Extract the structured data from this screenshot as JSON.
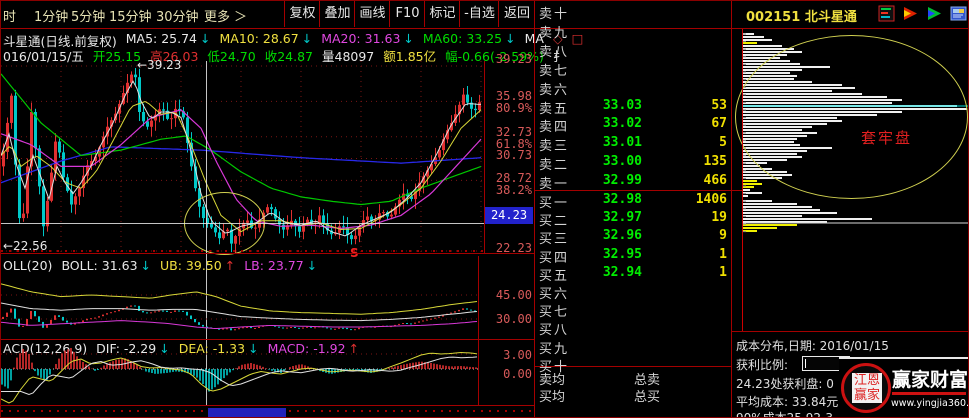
{
  "toolbar": {
    "periods": [
      "时",
      "1分钟",
      "5分钟",
      "15分钟",
      "30分钟",
      "更多",
      "＞"
    ],
    "buttons": [
      "复权",
      "叠加",
      "画线",
      "F10",
      "标记",
      "-自选",
      "返回"
    ]
  },
  "window": {
    "stock_code": "002151",
    "stock_name": "北斗星通"
  },
  "icons": [
    "quote-list-icon",
    "red-arrow-icon",
    "green-arrow-icon",
    "window-icon"
  ],
  "info_line": {
    "title": "斗星通(日线.前复权)",
    "ma_items": [
      {
        "text": "MA5: 25.74",
        "color": "#e8e8e8"
      },
      {
        "text": "MA10: 28.67",
        "color": "#f0e040"
      },
      {
        "text": "MA20: 31.63",
        "color": "#e048e0"
      },
      {
        "text": "MA60: 33.25",
        "color": "#00dc00"
      }
    ],
    "ma_arrow": "↓",
    "ma_arrow_color": "#00c8c8",
    "ma_suffix": "MA"
  },
  "date_line": {
    "date": "016/01/15/五",
    "fields": [
      {
        "text": "开25.15",
        "color": "#00dc00"
      },
      {
        "text": "高26.03",
        "color": "#e03030"
      },
      {
        "text": "低24.70",
        "color": "#00dc00"
      },
      {
        "text": "收24.87",
        "color": "#00dc00"
      },
      {
        "text": "量48097",
        "color": "#e8e8e8"
      },
      {
        "text": "额1.85亿",
        "color": "#f0e040"
      },
      {
        "text": "幅-0.66(-2.59%)",
        "color": "#00dc00"
      },
      {
        "text": "扌",
        "color": "#e8e8e8"
      }
    ]
  },
  "main_chart": {
    "axis_labels": [
      "39.23",
      "35.98",
      "80.9%",
      "32.73",
      "61.8%",
      "30.73",
      "28.72",
      "38.2%",
      "22.23"
    ],
    "cursor_price": "24.23",
    "high_label": "←39.23",
    "low_label": "←22.56",
    "sell_marker": "S"
  },
  "boll_panel": {
    "title": "OLL(20)",
    "items": [
      {
        "text": "BOLL: 31.63",
        "color": "#e8e8e8",
        "arrow": "↓",
        "arrow_color": "#00c8c8"
      },
      {
        "text": "UB: 39.50",
        "color": "#f0e040",
        "arrow": "↑",
        "arrow_color": "#e03030"
      },
      {
        "text": "LB: 23.77",
        "color": "#e048e0",
        "arrow": "↓",
        "arrow_color": "#00c8c8"
      }
    ],
    "axis_labels": [
      "45.00",
      "30.00"
    ]
  },
  "macd_panel": {
    "title": "ACD(12,26,9)",
    "items": [
      {
        "text": "DIF: -2.29",
        "color": "#e8e8e8",
        "arrow": "↓",
        "arrow_color": "#00c8c8"
      },
      {
        "text": "DEA: -1.33",
        "color": "#f0e040",
        "arrow": "↓",
        "arrow_color": "#00c8c8"
      },
      {
        "text": "MACD: -1.92",
        "color": "#e048e0",
        "arrow": "↑",
        "arrow_color": "#e03030"
      }
    ],
    "axis_labels": [
      "3.00",
      "0.00"
    ]
  },
  "order_book": {
    "price_color": "#00ee00",
    "volume_color": "#f0e000",
    "rows": [
      {
        "label": "卖十",
        "price": "",
        "vol": ""
      },
      {
        "label": "卖九",
        "price": "",
        "vol": ""
      },
      {
        "label": "卖八",
        "price": "",
        "vol": ""
      },
      {
        "label": "卖七",
        "price": "",
        "vol": ""
      },
      {
        "label": "卖六",
        "price": "",
        "vol": ""
      },
      {
        "label": "卖五",
        "price": "33.03",
        "vol": "53"
      },
      {
        "label": "卖四",
        "price": "33.02",
        "vol": "67"
      },
      {
        "label": "卖三",
        "price": "33.01",
        "vol": "5"
      },
      {
        "label": "卖二",
        "price": "33.00",
        "vol": "135"
      },
      {
        "label": "卖一",
        "price": "32.99",
        "vol": "466"
      },
      {
        "label": "买一",
        "price": "32.98",
        "vol": "1406"
      },
      {
        "label": "买二",
        "price": "32.97",
        "vol": "19"
      },
      {
        "label": "买三",
        "price": "32.96",
        "vol": "9"
      },
      {
        "label": "买四",
        "price": "32.95",
        "vol": "1"
      },
      {
        "label": "买五",
        "price": "32.94",
        "vol": "1"
      },
      {
        "label": "买六",
        "price": "",
        "vol": ""
      },
      {
        "label": "买七",
        "price": "",
        "vol": ""
      },
      {
        "label": "买八",
        "price": "",
        "vol": ""
      },
      {
        "label": "买九",
        "price": "",
        "vol": ""
      },
      {
        "label": "买十",
        "price": "",
        "vol": ""
      }
    ],
    "footer": [
      {
        "label": "卖均",
        "total": "总卖"
      },
      {
        "label": "买均",
        "total": "总买"
      }
    ]
  },
  "cost_panel": {
    "overlay_label": "套牢盘",
    "title": "成本分布,日期: 2016/01/15",
    "profit_ratio_label": "获利比例:",
    "profit_at_price": "24.23处获利盘: 0",
    "avg_cost": "平均成本: 33.84元",
    "cost_range": "90%成本25.92-3"
  },
  "watermark": {
    "seal_text": "江恩赢家",
    "title": "赢家财富网",
    "url": "www.yingjia360.com"
  }
}
